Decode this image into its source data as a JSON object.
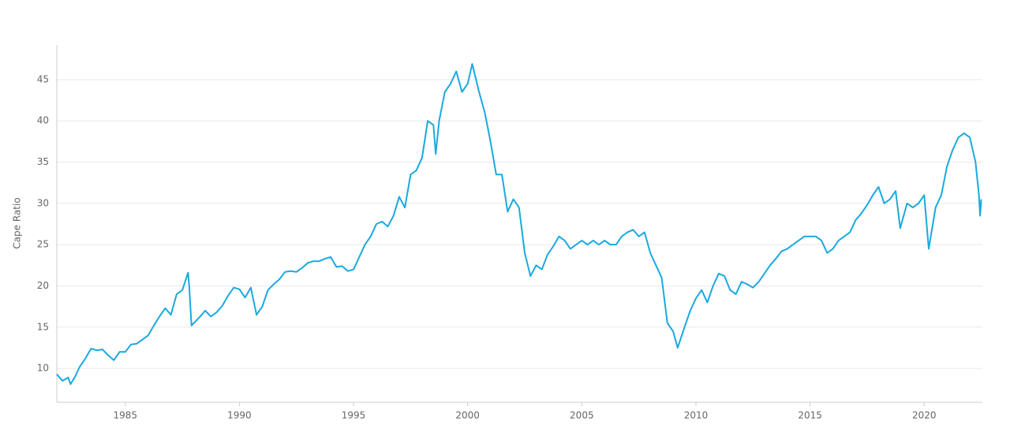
{
  "chart_data": {
    "type": "line",
    "ylabel": "Cape Ratio",
    "x": [
      1982.0,
      1982.25,
      1982.5,
      1982.6,
      1982.8,
      1983.0,
      1983.25,
      1983.5,
      1983.75,
      1984.0,
      1984.25,
      1984.5,
      1984.75,
      1985.0,
      1985.25,
      1985.5,
      1985.75,
      1986.0,
      1986.25,
      1986.5,
      1986.75,
      1987.0,
      1987.25,
      1987.5,
      1987.75,
      1987.8,
      1987.9,
      1988.25,
      1988.5,
      1988.75,
      1989.0,
      1989.25,
      1989.5,
      1989.75,
      1990.0,
      1990.25,
      1990.5,
      1990.75,
      1991.0,
      1991.25,
      1991.5,
      1991.75,
      1992.0,
      1992.25,
      1992.5,
      1992.75,
      1993.0,
      1993.25,
      1993.5,
      1993.75,
      1994.0,
      1994.25,
      1994.5,
      1994.75,
      1995.0,
      1995.25,
      1995.5,
      1995.75,
      1996.0,
      1996.25,
      1996.5,
      1996.75,
      1997.0,
      1997.25,
      1997.5,
      1997.75,
      1998.0,
      1998.25,
      1998.5,
      1998.6,
      1998.75,
      1999.0,
      1999.25,
      1999.5,
      1999.75,
      2000.0,
      2000.2,
      2000.5,
      2000.75,
      2001.0,
      2001.25,
      2001.5,
      2001.75,
      2002.0,
      2002.25,
      2002.5,
      2002.75,
      2003.0,
      2003.25,
      2003.5,
      2003.75,
      2004.0,
      2004.25,
      2004.5,
      2004.75,
      2005.0,
      2005.25,
      2005.5,
      2005.75,
      2006.0,
      2006.25,
      2006.5,
      2006.75,
      2007.0,
      2007.25,
      2007.5,
      2007.75,
      2008.0,
      2008.25,
      2008.5,
      2008.75,
      2009.0,
      2009.2,
      2009.5,
      2009.75,
      2010.0,
      2010.25,
      2010.5,
      2010.75,
      2011.0,
      2011.25,
      2011.5,
      2011.75,
      2012.0,
      2012.25,
      2012.5,
      2012.75,
      2013.0,
      2013.25,
      2013.5,
      2013.75,
      2014.0,
      2014.25,
      2014.5,
      2014.75,
      2015.0,
      2015.25,
      2015.5,
      2015.75,
      2016.0,
      2016.25,
      2016.5,
      2016.75,
      2017.0,
      2017.25,
      2017.5,
      2017.75,
      2018.0,
      2018.25,
      2018.5,
      2018.75,
      2018.95,
      2019.25,
      2019.5,
      2019.75,
      2020.0,
      2020.2,
      2020.5,
      2020.75,
      2021.0,
      2021.25,
      2021.5,
      2021.75,
      2022.0,
      2022.25,
      2022.4,
      2022.45,
      2022.5
    ],
    "series": [
      {
        "name": "Cape Ratio",
        "color": "#1aa9df",
        "values": [
          9.3,
          8.5,
          8.9,
          8.1,
          9.0,
          10.2,
          11.2,
          12.4,
          12.2,
          12.3,
          11.6,
          11.0,
          12.0,
          12.0,
          12.9,
          13.0,
          13.5,
          14.0,
          15.2,
          16.3,
          17.3,
          16.5,
          19.0,
          19.5,
          21.6,
          20.0,
          15.2,
          16.2,
          17.0,
          16.3,
          16.8,
          17.6,
          18.8,
          19.8,
          19.6,
          18.6,
          19.8,
          16.5,
          17.5,
          19.5,
          20.2,
          20.8,
          21.7,
          21.8,
          21.7,
          22.2,
          22.8,
          23.0,
          23.0,
          23.3,
          23.5,
          22.3,
          22.4,
          21.8,
          22.0,
          23.5,
          25.0,
          26.0,
          27.5,
          27.8,
          27.2,
          28.5,
          30.8,
          29.5,
          33.5,
          34.0,
          35.5,
          40.0,
          39.5,
          36.0,
          40.0,
          43.5,
          44.5,
          46.0,
          43.5,
          44.5,
          46.9,
          43.5,
          41.0,
          37.5,
          33.5,
          33.5,
          29.0,
          30.5,
          29.5,
          24.0,
          21.2,
          22.5,
          22.0,
          23.8,
          24.8,
          26.0,
          25.5,
          24.5,
          25.0,
          25.5,
          25.0,
          25.5,
          25.0,
          25.5,
          25.0,
          25.0,
          26.0,
          26.5,
          26.8,
          26.0,
          26.5,
          24.0,
          22.5,
          21.0,
          15.5,
          14.5,
          12.5,
          15.0,
          17.0,
          18.5,
          19.5,
          18.0,
          20.0,
          21.5,
          21.2,
          19.5,
          19.0,
          20.5,
          20.2,
          19.8,
          20.5,
          21.5,
          22.5,
          23.3,
          24.2,
          24.5,
          25.0,
          25.5,
          26.0,
          26.0,
          26.0,
          25.5,
          24.0,
          24.5,
          25.5,
          26.0,
          26.5,
          28.0,
          28.8,
          29.8,
          31.0,
          32.0,
          30.0,
          30.5,
          31.5,
          27.0,
          30.0,
          29.5,
          30.0,
          31.0,
          24.5,
          29.5,
          31.0,
          34.5,
          36.5,
          38.0,
          38.5,
          38.0,
          35.0,
          31.0,
          28.5,
          30.5
        ]
      }
    ],
    "xlim": [
      1982,
      2022.55
    ],
    "xticks": [
      1985,
      1990,
      1995,
      2000,
      2005,
      2010,
      2015,
      2020
    ],
    "ylim": [
      5.9,
      49.2
    ],
    "yticks": [
      10,
      15,
      20,
      25,
      30,
      35,
      40,
      45
    ],
    "grid": true
  }
}
